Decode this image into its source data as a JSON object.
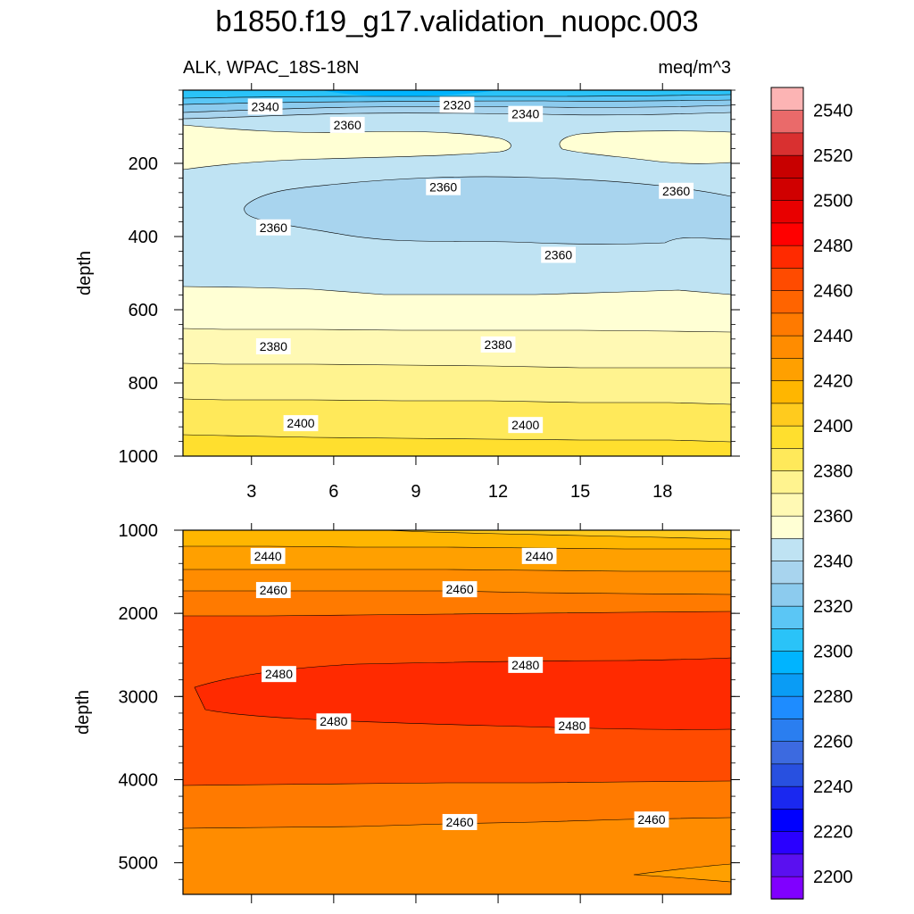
{
  "title": "b1850.f19_g17.validation_nuopc.003",
  "subtitle_left": "ALK, WPAC_18S-18N",
  "subtitle_right": "meq/m^3",
  "colors": {
    "bands": [
      "#8000ff",
      "#5a10f0",
      "#2a00ff",
      "#0000ff",
      "#1a28f0",
      "#2850e0",
      "#3c6ae0",
      "#2a7ef0",
      "#1e8cff",
      "#0a9cf5",
      "#00b4ff",
      "#2ac3f8",
      "#5bc6f5",
      "#8ccbee",
      "#a8d4ee",
      "#bfe3f3",
      "#ffffd4",
      "#fff9b4",
      "#fff38f",
      "#ffe95a",
      "#ffdf2e",
      "#ffcb1e",
      "#ffb600",
      "#ffa000",
      "#ff8c00",
      "#ff7a00",
      "#ff6400",
      "#ff4b00",
      "#ff2a00",
      "#ff0000",
      "#e80000",
      "#d00000",
      "#c80000",
      "#d93030",
      "#ea6a6a",
      "#fcb4b4"
    ]
  },
  "chart_data": [
    {
      "type": "contour",
      "panel": "upper",
      "variable": "ALK",
      "region": "WPAC_18S-18N",
      "units": "meq/m^3",
      "xlabel": "",
      "ylabel": "depth",
      "xlim": [
        0.5,
        20.5
      ],
      "ylim": [
        1000,
        0
      ],
      "xticks": [
        3,
        6,
        9,
        12,
        15,
        18
      ],
      "yticks": [
        200,
        400,
        600,
        800,
        1000
      ],
      "contour_labels": [
        {
          "x": 3.5,
          "depth": 45,
          "value": "2340"
        },
        {
          "x": 6.5,
          "depth": 95,
          "value": "2360"
        },
        {
          "x": 10.5,
          "depth": 40,
          "value": "2320"
        },
        {
          "x": 13.0,
          "depth": 65,
          "value": "2340"
        },
        {
          "x": 10.0,
          "depth": 265,
          "value": "2360"
        },
        {
          "x": 18.5,
          "depth": 275,
          "value": "2360"
        },
        {
          "x": 3.8,
          "depth": 375,
          "value": "2360"
        },
        {
          "x": 14.2,
          "depth": 450,
          "value": "2360"
        },
        {
          "x": 3.8,
          "depth": 700,
          "value": "2380"
        },
        {
          "x": 12.0,
          "depth": 695,
          "value": "2380"
        },
        {
          "x": 4.8,
          "depth": 910,
          "value": "2400"
        },
        {
          "x": 13.0,
          "depth": 915,
          "value": "2400"
        }
      ]
    },
    {
      "type": "contour",
      "panel": "lower",
      "variable": "ALK",
      "units": "meq/m^3",
      "xlabel": "",
      "ylabel": "depth",
      "xlim": [
        0.5,
        20.5
      ],
      "ylim": [
        5380,
        1000
      ],
      "xticks": [
        3,
        6,
        9,
        12,
        15,
        18
      ],
      "yticks": [
        1000,
        2000,
        3000,
        4000,
        5000
      ],
      "contour_labels": [
        {
          "x": 3.6,
          "depth": 1310,
          "value": "2440"
        },
        {
          "x": 13.5,
          "depth": 1310,
          "value": "2440"
        },
        {
          "x": 3.8,
          "depth": 1720,
          "value": "2460"
        },
        {
          "x": 10.6,
          "depth": 1710,
          "value": "2460"
        },
        {
          "x": 4.0,
          "depth": 2730,
          "value": "2480"
        },
        {
          "x": 13.0,
          "depth": 2620,
          "value": "2480"
        },
        {
          "x": 6.0,
          "depth": 3300,
          "value": "2480"
        },
        {
          "x": 14.7,
          "depth": 3350,
          "value": "2480"
        },
        {
          "x": 10.6,
          "depth": 4510,
          "value": "2460"
        },
        {
          "x": 17.6,
          "depth": 4480,
          "value": "2460"
        }
      ]
    },
    {
      "type": "colorbar",
      "levels": [
        2200,
        2210,
        2220,
        2230,
        2240,
        2250,
        2260,
        2270,
        2280,
        2290,
        2300,
        2310,
        2320,
        2330,
        2340,
        2350,
        2360,
        2370,
        2380,
        2390,
        2400,
        2410,
        2420,
        2430,
        2440,
        2450,
        2460,
        2470,
        2480,
        2490,
        2500,
        2510,
        2520,
        2530,
        2540
      ],
      "labels": [
        "2200",
        "2220",
        "2240",
        "2260",
        "2280",
        "2300",
        "2320",
        "2340",
        "2360",
        "2380",
        "2400",
        "2420",
        "2440",
        "2460",
        "2480",
        "2500",
        "2520",
        "2540"
      ]
    }
  ]
}
